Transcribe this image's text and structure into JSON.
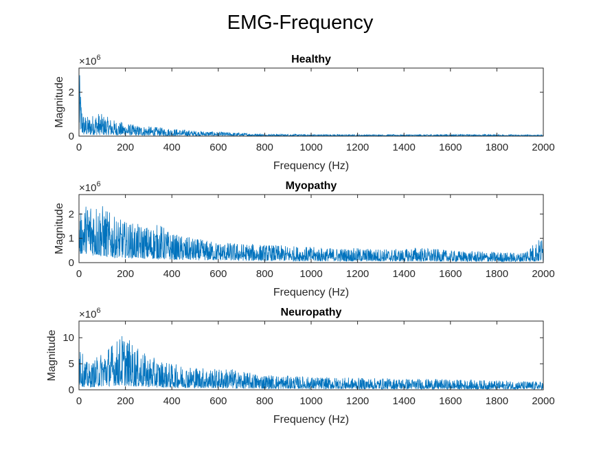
{
  "figure_title": "EMG-Frequency",
  "colors": {
    "series": "#0072BD",
    "axis": "#262626",
    "background": "#ffffff"
  },
  "chart_data": [
    {
      "type": "line",
      "title": "Healthy",
      "xlabel": "Frequency (Hz)",
      "ylabel": "Magnitude",
      "exponent_label": "×10^6",
      "exponent_base": "×10",
      "exponent_power": "6",
      "xlim": [
        0,
        2000
      ],
      "ylim": [
        0,
        3.1
      ],
      "xticks": [
        0,
        200,
        400,
        600,
        800,
        1000,
        1200,
        1400,
        1600,
        1800,
        2000
      ],
      "yticks": [
        0,
        2
      ],
      "series": [
        {
          "x": [
            0,
            5,
            10,
            20,
            40,
            60,
            80,
            100,
            150,
            200,
            250,
            300,
            400,
            500,
            600,
            700,
            800,
            1000,
            1200,
            1400,
            1600,
            1800,
            2000
          ],
          "y_max": [
            3.1,
            2.6,
            1.6,
            1.0,
            0.9,
            1.0,
            1.1,
            1.0,
            0.75,
            0.6,
            0.5,
            0.45,
            0.35,
            0.25,
            0.2,
            0.15,
            0.1,
            0.08,
            0.07,
            0.07,
            0.08,
            0.07,
            0.06
          ],
          "y_min": [
            0.2,
            0.2,
            0.1,
            0.05,
            0.05,
            0.05,
            0.05,
            0.05,
            0.04,
            0.04,
            0.03,
            0.03,
            0.02,
            0.02,
            0.02,
            0.01,
            0.01,
            0.01,
            0.01,
            0.01,
            0.01,
            0.01,
            0.01
          ]
        }
      ]
    },
    {
      "type": "line",
      "title": "Myopathy",
      "xlabel": "Frequency (Hz)",
      "ylabel": "Magnitude",
      "exponent_label": "×10^6",
      "exponent_base": "×10",
      "exponent_power": "6",
      "xlim": [
        0,
        2000
      ],
      "ylim": [
        0,
        2.8
      ],
      "xticks": [
        0,
        200,
        400,
        600,
        800,
        1000,
        1200,
        1400,
        1600,
        1800,
        2000
      ],
      "yticks": [
        0,
        1,
        2
      ],
      "series": [
        {
          "x": [
            0,
            20,
            50,
            100,
            150,
            200,
            300,
            350,
            400,
            500,
            600,
            700,
            800,
            900,
            1000,
            1100,
            1200,
            1400,
            1450,
            1600,
            1800,
            1900,
            2000
          ],
          "y_max": [
            1.9,
            2.3,
            2.7,
            2.4,
            1.9,
            1.7,
            1.5,
            1.6,
            1.2,
            1.0,
            0.85,
            0.8,
            0.75,
            0.7,
            0.65,
            0.6,
            0.6,
            0.55,
            0.65,
            0.5,
            0.45,
            0.4,
            1.1
          ],
          "y_min": [
            0.3,
            0.4,
            0.3,
            0.25,
            0.2,
            0.2,
            0.15,
            0.15,
            0.12,
            0.1,
            0.1,
            0.08,
            0.07,
            0.07,
            0.06,
            0.06,
            0.06,
            0.05,
            0.05,
            0.05,
            0.04,
            0.04,
            0.05
          ]
        }
      ]
    },
    {
      "type": "line",
      "title": "Neuropathy",
      "xlabel": "Frequency (Hz)",
      "ylabel": "Magnitude",
      "exponent_label": "×10^6",
      "exponent_base": "×10",
      "exponent_power": "6",
      "xlim": [
        0,
        2000
      ],
      "ylim": [
        0,
        13.2
      ],
      "xticks": [
        0,
        200,
        400,
        600,
        800,
        1000,
        1200,
        1400,
        1600,
        1800,
        2000
      ],
      "yticks": [
        0,
        5,
        10
      ],
      "series": [
        {
          "x": [
            0,
            5,
            15,
            30,
            50,
            80,
            120,
            160,
            190,
            220,
            250,
            300,
            400,
            500,
            600,
            650,
            700,
            800,
            900,
            1000,
            1200,
            1400,
            1600,
            1800,
            2000
          ],
          "y_max": [
            13.0,
            12.0,
            7.0,
            5.5,
            5.0,
            6.5,
            8.5,
            9.5,
            11.0,
            9.5,
            8.0,
            6.5,
            5.0,
            4.5,
            4.0,
            4.2,
            3.5,
            3.0,
            2.7,
            2.5,
            2.3,
            2.2,
            2.0,
            1.8,
            1.6
          ],
          "y_min": [
            1.0,
            0.8,
            0.6,
            0.5,
            0.5,
            0.6,
            0.7,
            0.8,
            0.8,
            0.7,
            0.6,
            0.5,
            0.4,
            0.35,
            0.3,
            0.3,
            0.25,
            0.2,
            0.2,
            0.18,
            0.15,
            0.15,
            0.13,
            0.12,
            0.1
          ]
        }
      ]
    }
  ]
}
